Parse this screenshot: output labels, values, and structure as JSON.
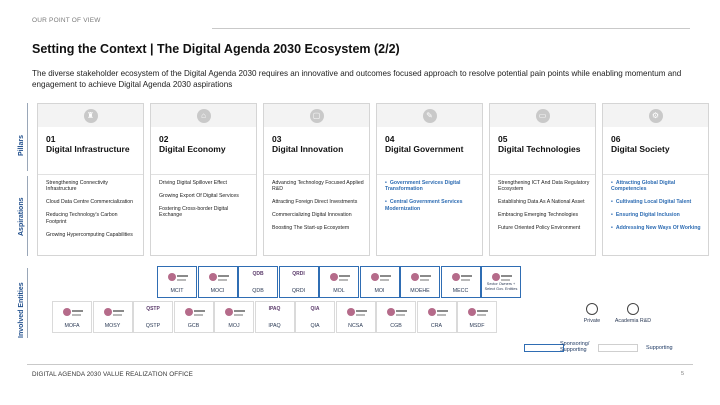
{
  "header": {
    "section_label": "OUR POINT OF VIEW"
  },
  "title": "Setting the Context | The Digital Agenda 2030 Ecosystem (2/2)",
  "subtitle": "The diverse stakeholder ecosystem of the Digital Agenda 2030 requires an innovative and outcomes focused approach to resolve potential pain points while enabling momentum and engagement to achieve Digital Agenda 2030 aspirations",
  "row_labels": {
    "pillars": "Pillars",
    "aspirations": "Aspirations",
    "entities": "Involved Entities"
  },
  "pillars": [
    {
      "num": "01",
      "name": "Digital Infrastructure",
      "icon": "infrastructure-icon",
      "style": "plain",
      "aspirations": [
        "Strengthening Connectivity Infrastructure",
        "Cloud Data Centre Commercialization",
        "Reducing Technology's Carbon Footprint",
        "Growing Hypercomputing Capabilities"
      ]
    },
    {
      "num": "02",
      "name": "Digital Economy",
      "icon": "economy-icon",
      "style": "plain",
      "aspirations": [
        "Driving Digital Spillover Effect",
        "Growing Export Of Digital Services",
        "Fostering Cross-border Digital Exchange"
      ]
    },
    {
      "num": "03",
      "name": "Digital Innovation",
      "icon": "innovation-icon",
      "style": "plain",
      "aspirations": [
        "Advancing Technology Focused Applied R&D",
        "Attracting Foreign Direct Investments",
        "Commercializing Digital Innovation",
        "Boosting The Start-up Ecosystem"
      ]
    },
    {
      "num": "04",
      "name": "Digital Government",
      "icon": "government-icon",
      "style": "blue",
      "aspirations": [
        "Government Services Digital Transformation",
        "Central Government Services Modernization"
      ]
    },
    {
      "num": "05",
      "name": "Digital Technologies",
      "icon": "technologies-icon",
      "style": "plain",
      "aspirations": [
        "Strengthening ICT And Data Regulatory Ecosystem",
        "Establishing Data As A National Asset",
        "Embracing Emerging Technologies",
        "Future Oriented Policy Environment"
      ]
    },
    {
      "num": "06",
      "name": "Digital Society",
      "icon": "society-icon",
      "style": "blue",
      "aspirations": [
        "Attracting Global Digital Competencies",
        "Cultivating Local Digital Talent",
        "Ensuring Digital Inclusion",
        "Addressing New Ways Of Working"
      ]
    }
  ],
  "entities_row1": [
    {
      "name": "MCIT",
      "logo": "crest"
    },
    {
      "name": "MOCI",
      "logo": "crest"
    },
    {
      "name": "QDB",
      "logo": "text",
      "logo_text": "QDB"
    },
    {
      "name": "QRDI",
      "logo": "text",
      "logo_text": "QRDI"
    },
    {
      "name": "MOL",
      "logo": "crest"
    },
    {
      "name": "MOI",
      "logo": "crest"
    },
    {
      "name": "MOEHE",
      "logo": "crest"
    },
    {
      "name": "MECC",
      "logo": "crest"
    },
    {
      "name": "Sector Owners + Select Gov. Entities",
      "logo": "crest",
      "small": true
    }
  ],
  "entities_row2": [
    {
      "name": "MOFA",
      "logo": "crest"
    },
    {
      "name": "MOSY",
      "logo": "crest"
    },
    {
      "name": "QSTP",
      "logo": "text",
      "logo_text": "QSTP"
    },
    {
      "name": "GCB",
      "logo": "crest"
    },
    {
      "name": "MOJ",
      "logo": "crest"
    },
    {
      "name": "IPAQ",
      "logo": "text",
      "logo_text": "IPAQ"
    },
    {
      "name": "QIA",
      "logo": "text",
      "logo_text": "QIA"
    },
    {
      "name": "NCSA",
      "logo": "crest"
    },
    {
      "name": "CGB",
      "logo": "crest"
    },
    {
      "name": "CRA",
      "logo": "crest"
    },
    {
      "name": "MSDF",
      "logo": "crest"
    }
  ],
  "other_entities": [
    {
      "name": "Private",
      "icon": "private-sector-icon"
    },
    {
      "name": "Academia R&D",
      "icon": "academia-icon"
    }
  ],
  "legend": {
    "sponsoring": "Sponsoring/ Supporting",
    "supporting": "Supporting"
  },
  "footer": {
    "text": "DIGITAL AGENDA 2030 VALUE REALIZATION OFFICE",
    "page": "5"
  }
}
